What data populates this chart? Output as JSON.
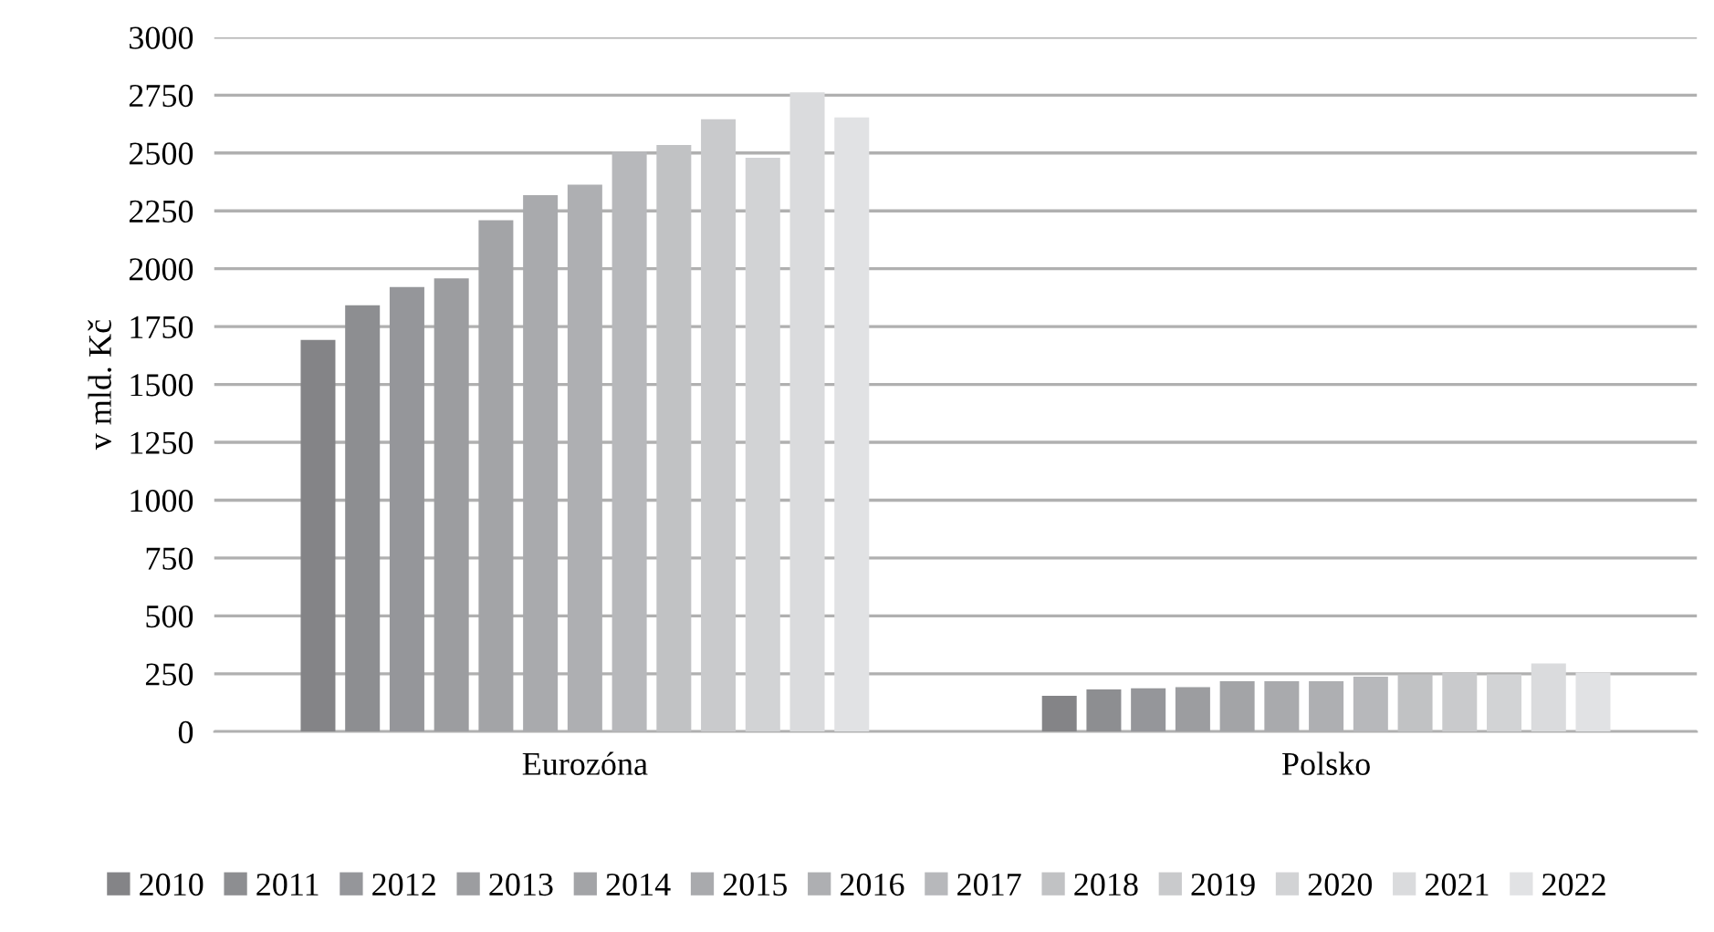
{
  "chart_data": {
    "type": "bar",
    "ylabel": "v mld. Kč",
    "categories": [
      "Eurozóna",
      "Polsko"
    ],
    "ylim": [
      0,
      3000
    ],
    "yticks": [
      0,
      250,
      500,
      750,
      1000,
      1250,
      1500,
      1750,
      2000,
      2250,
      2500,
      2750,
      3000
    ],
    "grid": "y",
    "legend": "bottom",
    "series": [
      {
        "name": "2010",
        "color": "#848487",
        "values": [
          1692,
          155
        ]
      },
      {
        "name": "2011",
        "color": "#8d8e91",
        "values": [
          1842,
          182
        ]
      },
      {
        "name": "2012",
        "color": "#95969a",
        "values": [
          1921,
          187
        ]
      },
      {
        "name": "2013",
        "color": "#9c9da0",
        "values": [
          1958,
          192
        ]
      },
      {
        "name": "2014",
        "color": "#a3a4a7",
        "values": [
          2210,
          218
        ]
      },
      {
        "name": "2015",
        "color": "#a9aaad",
        "values": [
          2318,
          218
        ]
      },
      {
        "name": "2016",
        "color": "#aeafb2",
        "values": [
          2363,
          218
        ]
      },
      {
        "name": "2017",
        "color": "#b7b8bb",
        "values": [
          2506,
          237
        ]
      },
      {
        "name": "2018",
        "color": "#c1c2c4",
        "values": [
          2535,
          247
        ]
      },
      {
        "name": "2019",
        "color": "#c9cacc",
        "values": [
          2646,
          253
        ]
      },
      {
        "name": "2020",
        "color": "#d2d3d5",
        "values": [
          2479,
          247
        ]
      },
      {
        "name": "2021",
        "color": "#dadbdd",
        "values": [
          2762,
          295
        ]
      },
      {
        "name": "2022",
        "color": "#e1e2e4",
        "values": [
          2654,
          255
        ]
      }
    ]
  }
}
